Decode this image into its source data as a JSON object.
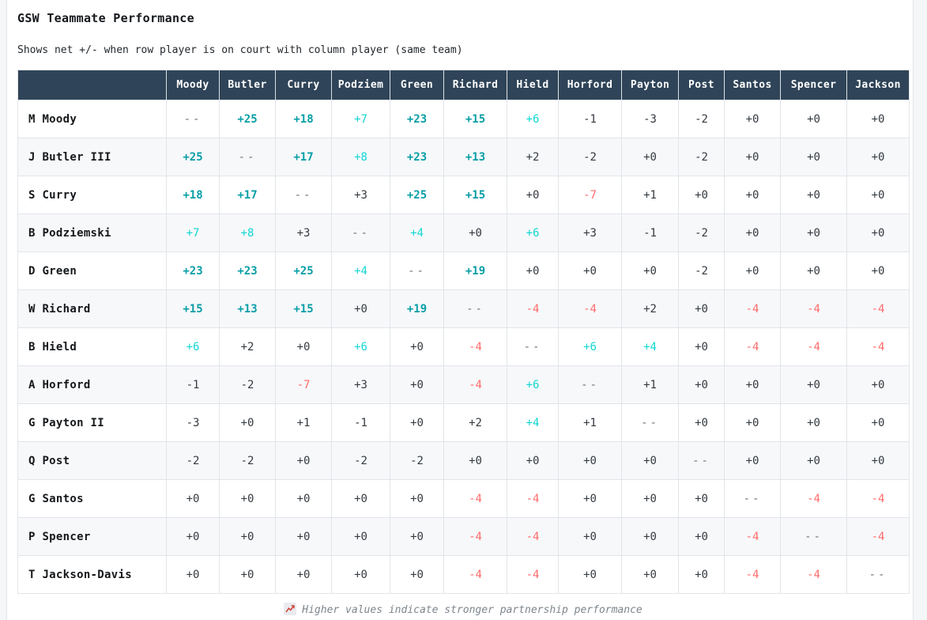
{
  "chart_data": {
    "type": "heatmap",
    "title": "GSW Teammate Performance",
    "subtitle": "Shows net +/- when row player is on court with column player (same team)",
    "value_semantics": "net plus-minus when row player is on court with column player",
    "columns": [
      "Moody",
      "Butler",
      "Curry",
      "Podziem",
      "Green",
      "Richard",
      "Hield",
      "Horford",
      "Payton",
      "Post",
      "Santos",
      "Spencer",
      "Jackson"
    ],
    "row_labels": [
      "M Moody",
      "J Butler III",
      "S Curry",
      "B Podziemski",
      "D Green",
      "W Richard",
      "B Hield",
      "A Horford",
      "G Payton II",
      "Q Post",
      "G Santos",
      "P Spencer",
      "T Jackson-Davis"
    ],
    "matrix": [
      [
        "--",
        "+25",
        "+18",
        "+7",
        "+23",
        "+15",
        "+6",
        "-1",
        "-3",
        "-2",
        "+0",
        "+0",
        "+0"
      ],
      [
        "+25",
        "--",
        "+17",
        "+8",
        "+23",
        "+13",
        "+2",
        "-2",
        "+0",
        "-2",
        "+0",
        "+0",
        "+0"
      ],
      [
        "+18",
        "+17",
        "--",
        "+3",
        "+25",
        "+15",
        "+0",
        "-7",
        "+1",
        "+0",
        "+0",
        "+0",
        "+0"
      ],
      [
        "+7",
        "+8",
        "+3",
        "--",
        "+4",
        "+0",
        "+6",
        "+3",
        "-1",
        "-2",
        "+0",
        "+0",
        "+0"
      ],
      [
        "+23",
        "+23",
        "+25",
        "+4",
        "--",
        "+19",
        "+0",
        "+0",
        "+0",
        "-2",
        "+0",
        "+0",
        "+0"
      ],
      [
        "+15",
        "+13",
        "+15",
        "+0",
        "+19",
        "--",
        "-4",
        "-4",
        "+2",
        "+0",
        "-4",
        "-4",
        "-4"
      ],
      [
        "+6",
        "+2",
        "+0",
        "+6",
        "+0",
        "-4",
        "--",
        "+6",
        "+4",
        "+0",
        "-4",
        "-4",
        "-4"
      ],
      [
        "-1",
        "-2",
        "-7",
        "+3",
        "+0",
        "-4",
        "+6",
        "--",
        "+1",
        "+0",
        "+0",
        "+0",
        "+0"
      ],
      [
        "-3",
        "+0",
        "+1",
        "-1",
        "+0",
        "+2",
        "+4",
        "+1",
        "--",
        "+0",
        "+0",
        "+0",
        "+0"
      ],
      [
        "-2",
        "-2",
        "+0",
        "-2",
        "-2",
        "+0",
        "+0",
        "+0",
        "+0",
        "--",
        "+0",
        "+0",
        "+0"
      ],
      [
        "+0",
        "+0",
        "+0",
        "+0",
        "+0",
        "-4",
        "-4",
        "+0",
        "+0",
        "+0",
        "--",
        "-4",
        "-4"
      ],
      [
        "+0",
        "+0",
        "+0",
        "+0",
        "+0",
        "-4",
        "-4",
        "+0",
        "+0",
        "+0",
        "-4",
        "--",
        "-4"
      ],
      [
        "+0",
        "+0",
        "+0",
        "+0",
        "+0",
        "-4",
        "-4",
        "+0",
        "+0",
        "+0",
        "-4",
        "-4",
        "--"
      ]
    ],
    "diagonal_marker": "--",
    "grid": true,
    "legend_position": "bottom",
    "color_rules": {
      "strong_positive_min": 10,
      "positive_min": 4,
      "negative_max": -4
    }
  },
  "footer": {
    "icon": "chart-increasing-icon",
    "note": "Higher values indicate stronger partnership performance"
  },
  "colors": {
    "header_bg": "#2f4458",
    "header_text": "#ffffff",
    "strong_positive": "#089ea6",
    "positive": "#10d6d2",
    "negative": "#ff6b6b",
    "neutral": "#343a40",
    "diagonal": "#6c757d"
  }
}
